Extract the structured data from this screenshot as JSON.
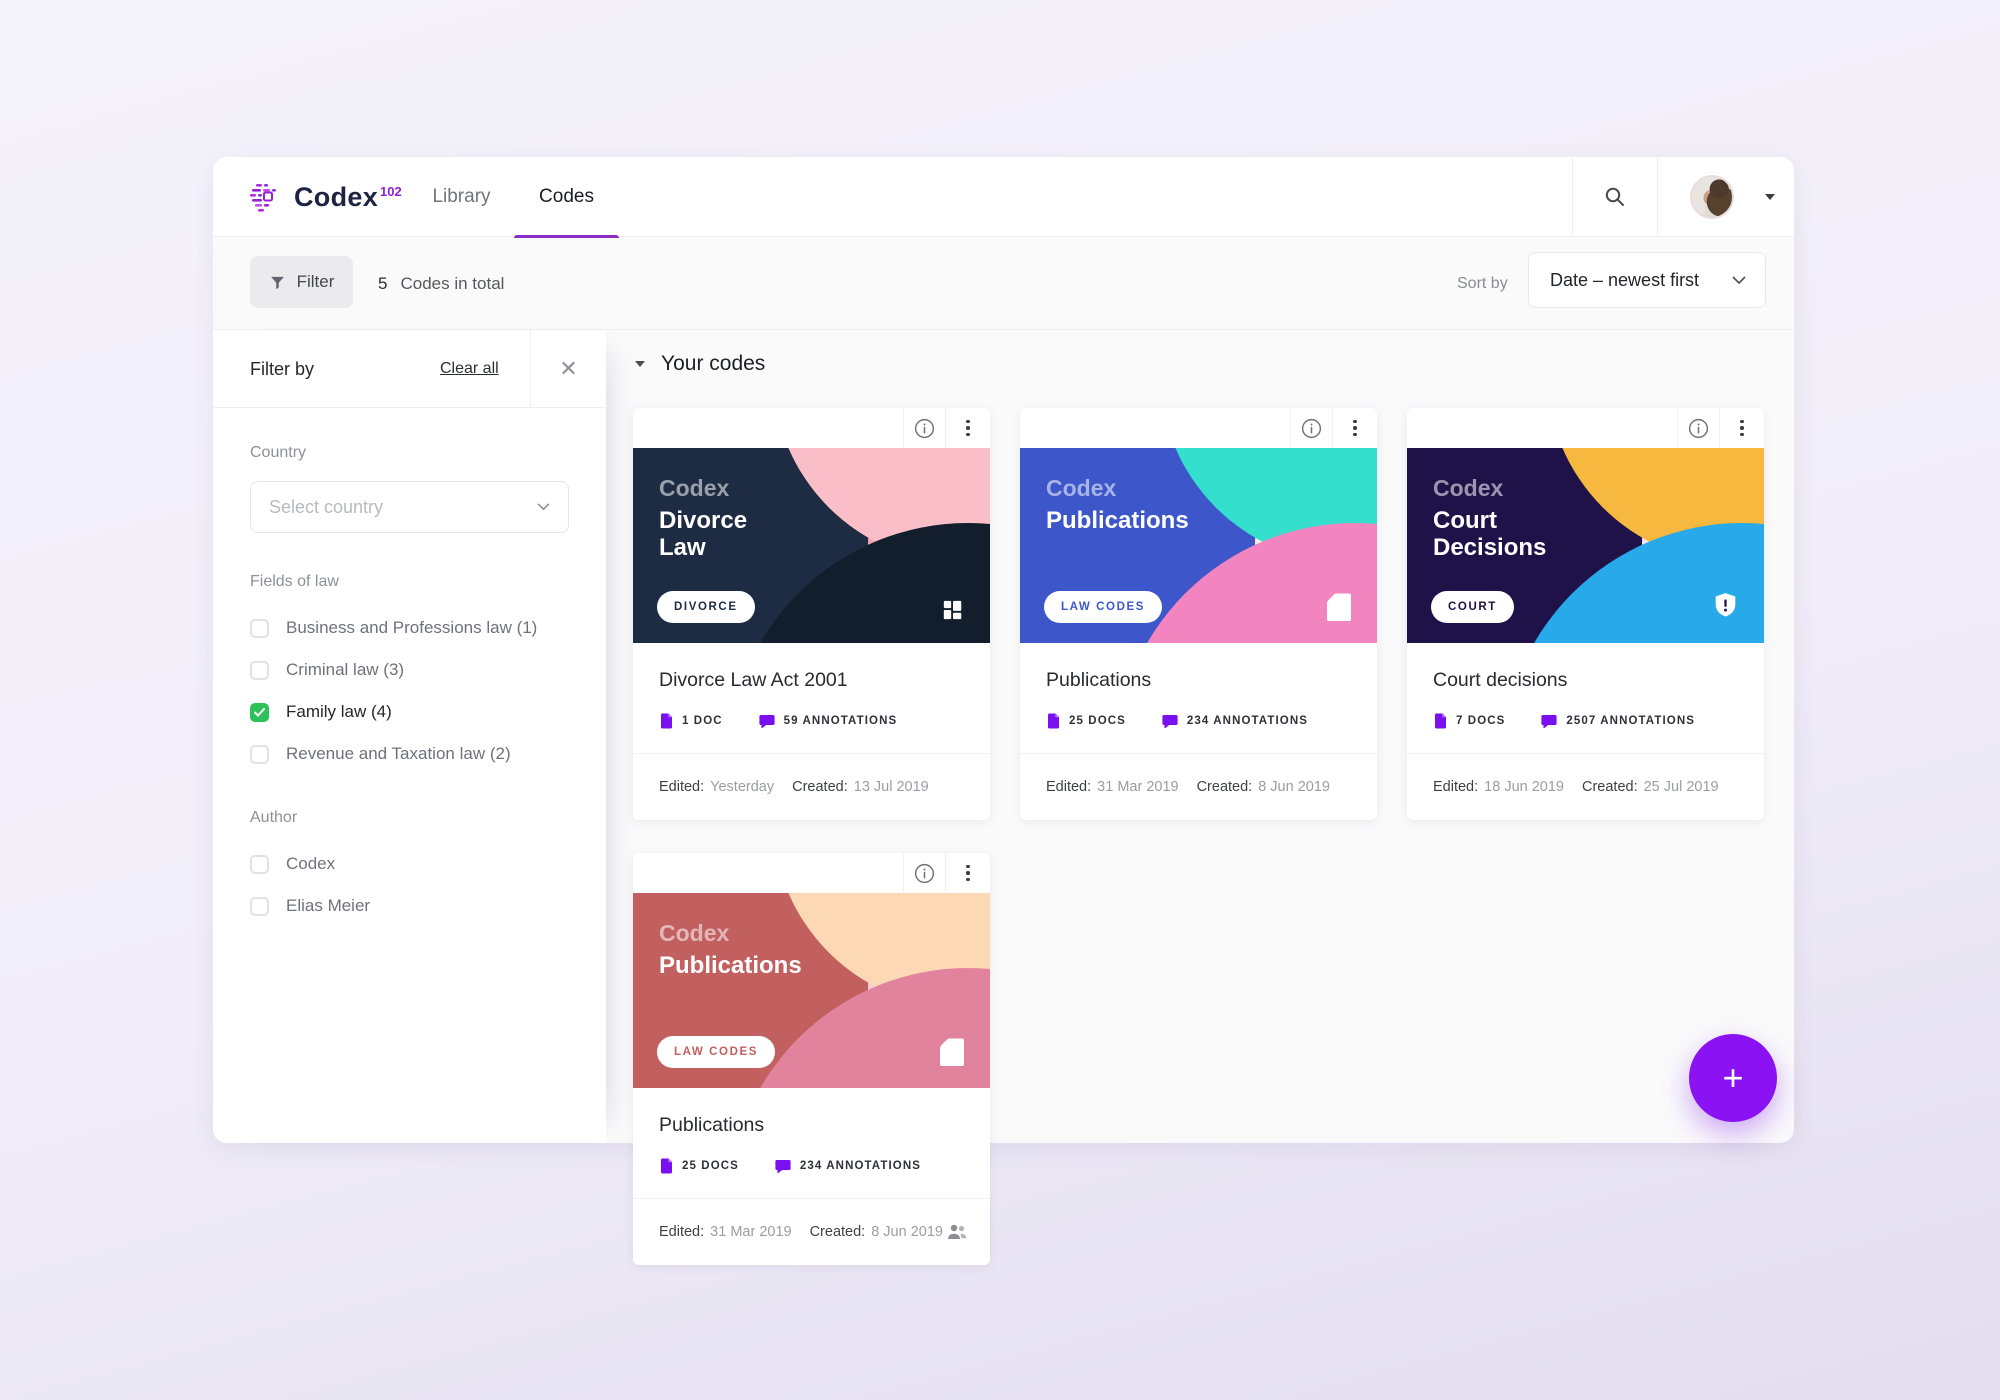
{
  "nav": {
    "logo_text": "Codex",
    "logo_superscript": "102",
    "tabs": [
      {
        "label": "Library",
        "active": false
      },
      {
        "label": "Codes",
        "active": true
      }
    ]
  },
  "filter_bar": {
    "filter_label": "Filter",
    "count": "5",
    "count_label": "Codes in total",
    "sort_label": "Sort by",
    "sort_value": "Date – newest first"
  },
  "sidebar": {
    "title": "Filter by",
    "clear_all": "Clear all",
    "close_icon": "✕",
    "country": {
      "label": "Country",
      "placeholder": "Select country"
    },
    "fields_of_law": {
      "label": "Fields of law",
      "options": [
        {
          "label": "Business and Professions law (1)",
          "checked": false
        },
        {
          "label": "Criminal law (3)",
          "checked": false
        },
        {
          "label": "Family law (4)",
          "checked": true
        },
        {
          "label": "Revenue and Taxation law (2)",
          "checked": false
        }
      ]
    },
    "author": {
      "label": "Author",
      "options": [
        {
          "label": "Codex",
          "checked": false
        },
        {
          "label": "Elias Meier",
          "checked": false
        }
      ]
    }
  },
  "main": {
    "section_title": "Your codes",
    "cards": [
      {
        "brand": "Codex",
        "cover_title_lines": [
          "Divorce",
          "Law"
        ],
        "tag": "DIVORCE",
        "cover_icon": "grid",
        "title": "Divorce Law Act 2001",
        "docs": "1 DOC",
        "annotations": "59 ANNOTATIONS",
        "edited_label": "Edited:",
        "edited": "Yesterday",
        "created_label": "Created:",
        "created": "13 Jul 2019",
        "shared": false,
        "cover_colors": {
          "base": "#1d2b43",
          "top": "#f9bec8",
          "crescent": "#f2a2b4",
          "bottom": "#131e2d"
        }
      },
      {
        "brand": "Codex",
        "cover_title_lines": [
          "Publications"
        ],
        "tag": "LAW CODES",
        "cover_icon": "document",
        "title": "Publications",
        "docs": "25 DOCS",
        "annotations": "234 ANNOTATIONS",
        "edited_label": "Edited:",
        "edited": "31 Mar 2019",
        "created_label": "Created:",
        "created": "8 Jun 2019",
        "shared": false,
        "cover_colors": {
          "base": "#3d56c9",
          "top": "#35dfcd",
          "crescent": "#f7ecd9",
          "bottom": "#f284bf"
        }
      },
      {
        "brand": "Codex",
        "cover_title_lines": [
          "Court",
          "Decisions"
        ],
        "tag": "COURT",
        "cover_icon": "shield",
        "title": "Court decisions",
        "docs": "7 DOCS",
        "annotations": "2507 ANNOTATIONS",
        "edited_label": "Edited:",
        "edited": "18 Jun 2019",
        "created_label": "Created:",
        "created": "25 Jul 2019",
        "shared": false,
        "cover_colors": {
          "base": "#1f1249",
          "top": "#f6b83e",
          "crescent": "#fbe4f2",
          "bottom": "#28a9e9"
        }
      },
      {
        "brand": "Codex",
        "cover_title_lines": [
          "Publications"
        ],
        "tag": "LAW CODES",
        "cover_icon": "document",
        "title": "Publications",
        "docs": "25 DOCS",
        "annotations": "234 ANNOTATIONS",
        "edited_label": "Edited:",
        "edited": "31 Mar 2019",
        "created_label": "Created:",
        "created": "8 Jun 2019",
        "shared": true,
        "cover_colors": {
          "base": "#c25f5f",
          "top": "#fcd9b4",
          "crescent": "#f6cdd3",
          "bottom": "#e2839e"
        }
      }
    ],
    "fab_label": "+"
  },
  "colors": {
    "accent_purple": "#8a12f3",
    "tab_underline": "#8e2cc5",
    "checkbox_green": "#2fc159",
    "stat_icon_purple": "#7a10f0"
  }
}
